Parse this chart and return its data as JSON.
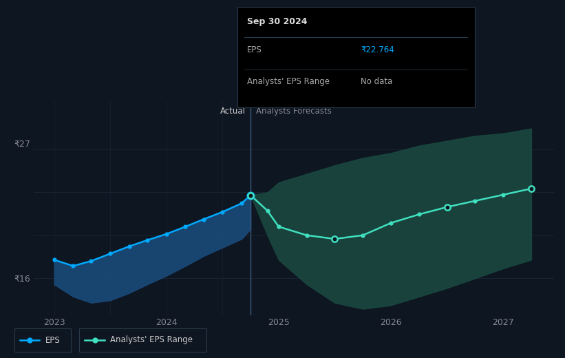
{
  "bg_color": "#0e1621",
  "plot_bg_color": "#0e1621",
  "grid_color": "#1a2535",
  "actual_x": [
    2023.0,
    2023.17,
    2023.33,
    2023.5,
    2023.67,
    2023.83,
    2024.0,
    2024.17,
    2024.33,
    2024.5,
    2024.67,
    2024.75
  ],
  "actual_y": [
    17.5,
    17.0,
    17.4,
    18.0,
    18.6,
    19.1,
    19.6,
    20.2,
    20.8,
    21.4,
    22.1,
    22.764
  ],
  "actual_fill_lower": [
    15.5,
    14.5,
    14.0,
    14.2,
    14.8,
    15.5,
    16.2,
    17.0,
    17.8,
    18.5,
    19.2,
    20.0
  ],
  "forecast_x": [
    2024.75,
    2024.9,
    2025.0,
    2025.25,
    2025.5,
    2025.75,
    2026.0,
    2026.25,
    2026.5,
    2026.75,
    2027.0,
    2027.25
  ],
  "forecast_y": [
    22.764,
    21.5,
    20.2,
    19.5,
    19.2,
    19.5,
    20.5,
    21.2,
    21.8,
    22.3,
    22.8,
    23.3
  ],
  "forecast_upper": [
    22.764,
    23.0,
    23.8,
    24.5,
    25.2,
    25.8,
    26.2,
    26.8,
    27.2,
    27.6,
    27.8,
    28.2
  ],
  "forecast_lower": [
    22.764,
    19.5,
    17.5,
    15.5,
    14.0,
    13.5,
    13.8,
    14.5,
    15.2,
    16.0,
    16.8,
    17.5
  ],
  "divider_x": 2024.75,
  "ylim_min": 13.0,
  "ylim_max": 30.5,
  "xlim_min": 2022.82,
  "xlim_max": 2027.45,
  "ytick_values": [
    16,
    27
  ],
  "xtick_values": [
    2023,
    2024,
    2025,
    2026,
    2027
  ],
  "actual_line_color": "#00aaff",
  "actual_fill_color": "#1a4a7a",
  "forecast_line_color": "#40e0c0",
  "forecast_fill_color": "#1a4a40",
  "tooltip_date": "Sep 30 2024",
  "tooltip_eps_label": "EPS",
  "tooltip_eps_value": "₹22.764",
  "tooltip_range_label": "Analysts' EPS Range",
  "tooltip_range_value": "No data",
  "legend_eps_label": "EPS",
  "legend_range_label": "Analysts' EPS Range"
}
